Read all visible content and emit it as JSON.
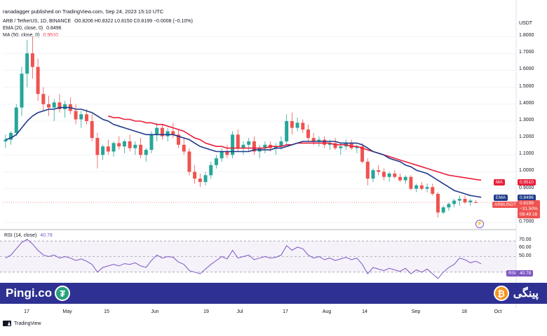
{
  "header": {
    "publisher": "ranadagger published on TradingView.com, Sep 24, 2023 15:10 UTC"
  },
  "legend": {
    "symbol": "ARB / TetherUS, 1D, BINANCE",
    "ohlc": "O0.8206 H0.8322 L0.8150 C0.8199 −0.0008 (−0.10%)",
    "ema_label": "EMA (20, close, 0)",
    "ema_value": "0.8496",
    "ma_label": "MA (50, close, 0)",
    "ma_value": "0.9510",
    "rsi_label": "RSI (14, close)",
    "rsi_value": "40.78"
  },
  "axis": {
    "currency": "USDT",
    "price_ticks": [
      "1.8000",
      "1.7000",
      "1.6000",
      "1.5000",
      "1.4000",
      "1.3000",
      "1.2000",
      "1.1000",
      "1.0000",
      "0.9000",
      "0.7000"
    ],
    "rsi_ticks": [
      "70.00",
      "60.00",
      "50.00"
    ],
    "x_ticks": [
      "17",
      "May",
      "15",
      "Jun",
      "19",
      "Jul",
      "17",
      "Aug",
      "14",
      "Sep",
      "18",
      "Oct"
    ]
  },
  "badges": {
    "ma_tag": "MA",
    "ma_val": "0.9510",
    "ema_tag": "EMA",
    "ema_val": "0.8496",
    "pair_tag": "ARBUSDT",
    "last_price": "0.8199",
    "change_pct": "−31.50%",
    "countdown": "08:49:16",
    "rsi_tag": "RSI",
    "rsi_val": "40.78"
  },
  "footer": {
    "brand": "TradingView"
  },
  "banner": {
    "left_text": "Pingi.co",
    "right_text": "پینگی",
    "tether_glyph": "₮",
    "btc_glyph": "₿"
  },
  "colors": {
    "up": "#26a69a",
    "down": "#ef5350",
    "ema": "#1e3a8a",
    "ma": "#e91e3a",
    "rsi": "#7e57c2",
    "banner": "#2e3192"
  },
  "chart_data": {
    "type": "candlestick",
    "symbol": "ARB / TetherUS",
    "interval": "1D",
    "ylim": [
      0.7,
      1.85
    ],
    "rsi_ylim": [
      20,
      80
    ],
    "candles": [
      [
        1.18,
        1.22,
        1.14,
        1.19
      ],
      [
        1.19,
        1.24,
        1.16,
        1.23
      ],
      [
        1.23,
        1.4,
        1.21,
        1.38
      ],
      [
        1.38,
        1.62,
        1.33,
        1.58
      ],
      [
        1.58,
        1.78,
        1.5,
        1.7
      ],
      [
        1.7,
        1.8,
        1.55,
        1.62
      ],
      [
        1.62,
        1.67,
        1.42,
        1.46
      ],
      [
        1.46,
        1.5,
        1.36,
        1.4
      ],
      [
        1.4,
        1.45,
        1.33,
        1.38
      ],
      [
        1.38,
        1.43,
        1.3,
        1.41
      ],
      [
        1.41,
        1.46,
        1.35,
        1.37
      ],
      [
        1.37,
        1.42,
        1.32,
        1.4
      ],
      [
        1.4,
        1.44,
        1.34,
        1.36
      ],
      [
        1.36,
        1.4,
        1.28,
        1.31
      ],
      [
        1.31,
        1.36,
        1.26,
        1.34
      ],
      [
        1.34,
        1.37,
        1.28,
        1.3
      ],
      [
        1.3,
        1.34,
        1.18,
        1.2
      ],
      [
        1.2,
        1.23,
        1.02,
        1.1
      ],
      [
        1.1,
        1.16,
        1.07,
        1.15
      ],
      [
        1.15,
        1.19,
        1.1,
        1.12
      ],
      [
        1.12,
        1.18,
        1.09,
        1.17
      ],
      [
        1.17,
        1.21,
        1.13,
        1.15
      ],
      [
        1.15,
        1.19,
        1.11,
        1.18
      ],
      [
        1.18,
        1.22,
        1.12,
        1.14
      ],
      [
        1.14,
        1.18,
        1.1,
        1.16
      ],
      [
        1.16,
        1.2,
        1.08,
        1.1
      ],
      [
        1.1,
        1.14,
        1.06,
        1.13
      ],
      [
        1.13,
        1.24,
        1.11,
        1.22
      ],
      [
        1.22,
        1.29,
        1.18,
        1.26
      ],
      [
        1.26,
        1.28,
        1.19,
        1.21
      ],
      [
        1.21,
        1.26,
        1.18,
        1.24
      ],
      [
        1.24,
        1.29,
        1.2,
        1.22
      ],
      [
        1.22,
        1.25,
        1.14,
        1.16
      ],
      [
        1.16,
        1.2,
        1.1,
        1.12
      ],
      [
        1.12,
        1.14,
        0.98,
        1.0
      ],
      [
        1.0,
        1.04,
        0.93,
        0.96
      ],
      [
        0.96,
        0.99,
        0.91,
        0.94
      ],
      [
        0.94,
        1.0,
        0.92,
        0.98
      ],
      [
        0.98,
        1.06,
        0.96,
        1.04
      ],
      [
        1.04,
        1.1,
        1.02,
        1.08
      ],
      [
        1.08,
        1.14,
        1.06,
        1.12
      ],
      [
        1.12,
        1.16,
        1.08,
        1.1
      ],
      [
        1.1,
        1.24,
        1.08,
        1.22
      ],
      [
        1.22,
        1.25,
        1.12,
        1.14
      ],
      [
        1.14,
        1.18,
        1.1,
        1.16
      ],
      [
        1.16,
        1.2,
        1.12,
        1.18
      ],
      [
        1.18,
        1.21,
        1.1,
        1.12
      ],
      [
        1.12,
        1.16,
        1.08,
        1.14
      ],
      [
        1.14,
        1.18,
        1.11,
        1.16
      ],
      [
        1.16,
        1.18,
        1.12,
        1.14
      ],
      [
        1.14,
        1.17,
        1.1,
        1.15
      ],
      [
        1.15,
        1.21,
        1.13,
        1.18
      ],
      [
        1.18,
        1.34,
        1.16,
        1.3
      ],
      [
        1.3,
        1.35,
        1.22,
        1.26
      ],
      [
        1.26,
        1.32,
        1.24,
        1.29
      ],
      [
        1.29,
        1.31,
        1.23,
        1.25
      ],
      [
        1.25,
        1.28,
        1.18,
        1.2
      ],
      [
        1.2,
        1.23,
        1.16,
        1.18
      ],
      [
        1.18,
        1.21,
        1.15,
        1.19
      ],
      [
        1.19,
        1.21,
        1.14,
        1.16
      ],
      [
        1.16,
        1.19,
        1.13,
        1.17
      ],
      [
        1.17,
        1.2,
        1.13,
        1.14
      ],
      [
        1.14,
        1.17,
        1.1,
        1.15
      ],
      [
        1.15,
        1.19,
        1.13,
        1.17
      ],
      [
        1.17,
        1.19,
        1.13,
        1.14
      ],
      [
        1.14,
        1.16,
        1.11,
        1.15
      ],
      [
        1.15,
        1.17,
        1.05,
        1.06
      ],
      [
        1.06,
        1.08,
        0.92,
        0.96
      ],
      [
        0.96,
        1.02,
        0.94,
        1.01
      ],
      [
        1.01,
        1.04,
        0.98,
        1.0
      ],
      [
        1.0,
        1.02,
        0.95,
        0.97
      ],
      [
        0.97,
        1.0,
        0.94,
        0.99
      ],
      [
        0.99,
        1.01,
        0.96,
        0.97
      ],
      [
        0.97,
        0.99,
        0.94,
        0.95
      ],
      [
        0.95,
        0.98,
        0.93,
        0.97
      ],
      [
        0.97,
        0.98,
        0.89,
        0.9
      ],
      [
        0.9,
        0.93,
        0.88,
        0.92
      ],
      [
        0.92,
        0.94,
        0.89,
        0.9
      ],
      [
        0.9,
        0.93,
        0.88,
        0.91
      ],
      [
        0.91,
        0.93,
        0.86,
        0.87
      ],
      [
        0.87,
        0.88,
        0.73,
        0.76
      ],
      [
        0.76,
        0.8,
        0.75,
        0.79
      ],
      [
        0.79,
        0.82,
        0.77,
        0.81
      ],
      [
        0.81,
        0.84,
        0.79,
        0.83
      ],
      [
        0.83,
        0.86,
        0.8,
        0.84
      ],
      [
        0.84,
        0.86,
        0.81,
        0.82
      ],
      [
        0.82,
        0.84,
        0.8,
        0.83
      ],
      [
        0.8206,
        0.8322,
        0.815,
        0.8199
      ]
    ],
    "ema20": [
      1.19,
      1.2,
      1.22,
      1.26,
      1.3,
      1.33,
      1.35,
      1.36,
      1.37,
      1.37,
      1.38,
      1.38,
      1.38,
      1.37,
      1.37,
      1.36,
      1.35,
      1.33,
      1.31,
      1.3,
      1.28,
      1.27,
      1.26,
      1.25,
      1.24,
      1.23,
      1.22,
      1.22,
      1.22,
      1.22,
      1.22,
      1.22,
      1.21,
      1.2,
      1.19,
      1.17,
      1.15,
      1.14,
      1.13,
      1.12,
      1.12,
      1.12,
      1.12,
      1.12,
      1.12,
      1.12,
      1.13,
      1.13,
      1.13,
      1.13,
      1.14,
      1.14,
      1.15,
      1.16,
      1.17,
      1.18,
      1.18,
      1.18,
      1.18,
      1.18,
      1.18,
      1.18,
      1.17,
      1.17,
      1.17,
      1.17,
      1.16,
      1.14,
      1.12,
      1.11,
      1.1,
      1.08,
      1.07,
      1.06,
      1.04,
      1.03,
      1.01,
      1.0,
      0.99,
      0.97,
      0.95,
      0.93,
      0.91,
      0.89,
      0.88,
      0.87,
      0.86,
      0.855,
      0.8496
    ],
    "ma50": [
      null,
      null,
      null,
      null,
      null,
      null,
      null,
      null,
      null,
      null,
      null,
      null,
      null,
      null,
      null,
      null,
      null,
      null,
      null,
      1.33,
      1.32,
      1.32,
      1.31,
      1.31,
      1.3,
      1.3,
      1.29,
      1.29,
      1.28,
      1.28,
      1.27,
      1.26,
      1.25,
      1.24,
      1.22,
      1.2,
      1.19,
      1.17,
      1.16,
      1.15,
      1.15,
      1.14,
      1.14,
      1.14,
      1.14,
      1.14,
      1.14,
      1.14,
      1.14,
      1.15,
      1.15,
      1.15,
      1.16,
      1.16,
      1.17,
      1.17,
      1.17,
      1.17,
      1.17,
      1.17,
      1.17,
      1.16,
      1.16,
      1.16,
      1.15,
      1.15,
      1.14,
      1.13,
      1.12,
      1.11,
      1.1,
      1.09,
      1.08,
      1.07,
      1.06,
      1.05,
      1.04,
      1.03,
      1.02,
      1.01,
      1.0,
      0.99,
      0.98,
      0.975,
      0.97,
      0.965,
      0.96,
      0.955,
      0.951
    ],
    "rsi": [
      48,
      52,
      60,
      68,
      72,
      66,
      58,
      52,
      50,
      52,
      48,
      50,
      48,
      45,
      47,
      44,
      40,
      30,
      36,
      38,
      40,
      38,
      41,
      40,
      42,
      38,
      36,
      45,
      52,
      48,
      50,
      49,
      43,
      40,
      32,
      30,
      28,
      34,
      40,
      45,
      50,
      47,
      58,
      48,
      50,
      52,
      46,
      48,
      50,
      48,
      49,
      52,
      64,
      58,
      62,
      60,
      52,
      48,
      50,
      46,
      48,
      45,
      47,
      49,
      46,
      48,
      40,
      28,
      36,
      34,
      32,
      35,
      33,
      31,
      35,
      28,
      33,
      30,
      34,
      28,
      22,
      30,
      36,
      40,
      48,
      46,
      42,
      44,
      40.78
    ]
  }
}
